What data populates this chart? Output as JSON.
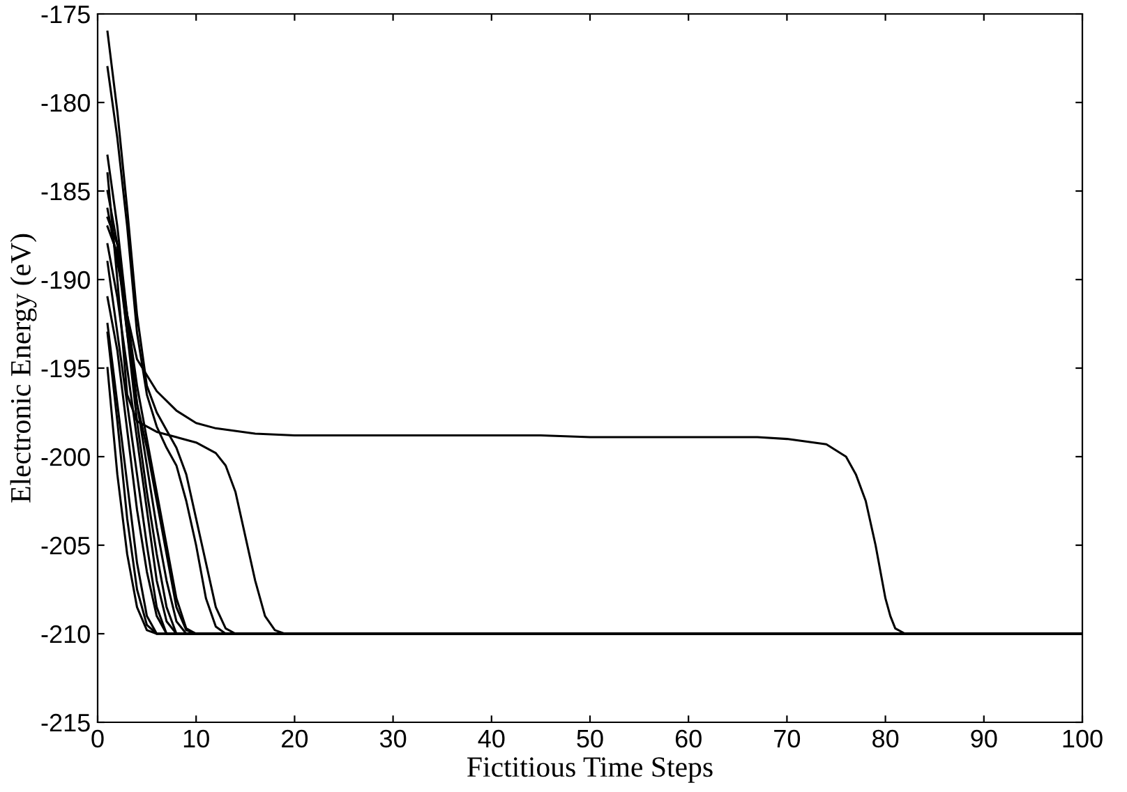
{
  "chart_data": {
    "type": "line",
    "xlabel": "Fictitious Time Steps",
    "ylabel": "Electronic Energy (eV)",
    "xlim": [
      0,
      100
    ],
    "ylim": [
      -215,
      -175
    ],
    "xticks": [
      0,
      10,
      20,
      30,
      40,
      50,
      60,
      70,
      80,
      90,
      100
    ],
    "yticks": [
      -215,
      -210,
      -205,
      -200,
      -195,
      -190,
      -185,
      -180,
      -175
    ],
    "grid": false,
    "legend": false,
    "marker": "none",
    "line_style": "solid",
    "series": [
      {
        "color": "#000000",
        "x": [
          1,
          2,
          3,
          4,
          6,
          8,
          10,
          12,
          16,
          20,
          30,
          45,
          50,
          60,
          67,
          70,
          74,
          76,
          77,
          78,
          79,
          80,
          80.5,
          81,
          82,
          100
        ],
        "values": [
          -186,
          -189,
          -192,
          -194.5,
          -196.3,
          -197.4,
          -198.1,
          -198.4,
          -198.7,
          -198.8,
          -198.8,
          -198.8,
          -198.9,
          -198.9,
          -198.9,
          -199,
          -199.3,
          -200,
          -201,
          -202.5,
          -205,
          -208,
          -209,
          -209.7,
          -210,
          -210
        ]
      },
      {
        "color": "#000000",
        "x": [
          1,
          2,
          3,
          4,
          6,
          8,
          10,
          12,
          13,
          14,
          15,
          16,
          17,
          18,
          19,
          100
        ],
        "values": [
          -184,
          -190,
          -196.5,
          -198,
          -198.6,
          -198.9,
          -199.2,
          -199.8,
          -200.5,
          -202,
          -204.5,
          -207,
          -209,
          -209.8,
          -210,
          -210
        ]
      },
      {
        "color": "#000000",
        "x": [
          1,
          2,
          3,
          4,
          5,
          6,
          7,
          8,
          9,
          10,
          11,
          12,
          13,
          14,
          100
        ],
        "values": [
          -176,
          -180.5,
          -186,
          -192,
          -196,
          -197.5,
          -198.5,
          -199.5,
          -201,
          -203.5,
          -206,
          -208.5,
          -209.7,
          -210,
          -210
        ]
      },
      {
        "color": "#000000",
        "x": [
          1,
          2,
          3,
          4,
          5,
          6,
          7,
          8,
          9,
          10,
          11,
          12,
          13,
          100
        ],
        "values": [
          -178,
          -182,
          -187,
          -193,
          -196.5,
          -198.3,
          -199.5,
          -200.5,
          -202.5,
          -205,
          -208,
          -209.6,
          -210,
          -210
        ]
      },
      {
        "color": "#000000",
        "x": [
          1,
          2,
          3,
          4,
          5,
          6,
          7,
          8,
          9,
          10,
          100
        ],
        "values": [
          -186.5,
          -188,
          -192,
          -196,
          -199,
          -202,
          -205,
          -208,
          -209.7,
          -210,
          -210
        ]
      },
      {
        "color": "#000000",
        "x": [
          1,
          2,
          3,
          4,
          5,
          6,
          7,
          8,
          9,
          10,
          100
        ],
        "values": [
          -187,
          -188.5,
          -193,
          -197,
          -199.5,
          -202.5,
          -205.5,
          -208.5,
          -209.8,
          -210,
          -210
        ]
      },
      {
        "color": "#000000",
        "x": [
          1,
          2,
          3,
          4,
          5,
          6,
          7,
          8,
          9,
          100
        ],
        "values": [
          -183,
          -187,
          -192,
          -197,
          -200.5,
          -204,
          -207,
          -209.3,
          -210,
          -210
        ]
      },
      {
        "color": "#000000",
        "x": [
          1,
          2,
          3,
          4,
          5,
          6,
          7,
          8,
          100
        ],
        "values": [
          -185,
          -188,
          -193,
          -198,
          -202,
          -205.5,
          -208.5,
          -210,
          -210
        ]
      },
      {
        "color": "#000000",
        "x": [
          1,
          2,
          3,
          4,
          5,
          6,
          7,
          8,
          100
        ],
        "values": [
          -188,
          -191,
          -195,
          -199,
          -203,
          -207,
          -209.3,
          -210,
          -210
        ]
      },
      {
        "color": "#000000",
        "x": [
          1,
          2,
          3,
          4,
          5,
          6,
          7,
          100
        ],
        "values": [
          -189,
          -193,
          -197,
          -201,
          -205,
          -208.5,
          -210,
          -210
        ]
      },
      {
        "color": "#000000",
        "x": [
          1,
          2,
          3,
          4,
          5,
          6,
          7,
          100
        ],
        "values": [
          -191,
          -194,
          -198.5,
          -203,
          -206.5,
          -209,
          -210,
          -210
        ]
      },
      {
        "color": "#000000",
        "x": [
          1,
          2,
          3,
          4,
          5,
          6,
          100
        ],
        "values": [
          -192.5,
          -197,
          -201.5,
          -206,
          -209,
          -210,
          -210
        ]
      },
      {
        "color": "#000000",
        "x": [
          1,
          2,
          3,
          4,
          5,
          6,
          100
        ],
        "values": [
          -193,
          -198,
          -203.5,
          -207.5,
          -209.5,
          -210,
          -210
        ]
      },
      {
        "color": "#000000",
        "x": [
          1,
          2,
          3,
          4,
          5,
          6,
          100
        ],
        "values": [
          -195,
          -201,
          -205.5,
          -208.5,
          -209.8,
          -210,
          -210
        ]
      }
    ]
  }
}
